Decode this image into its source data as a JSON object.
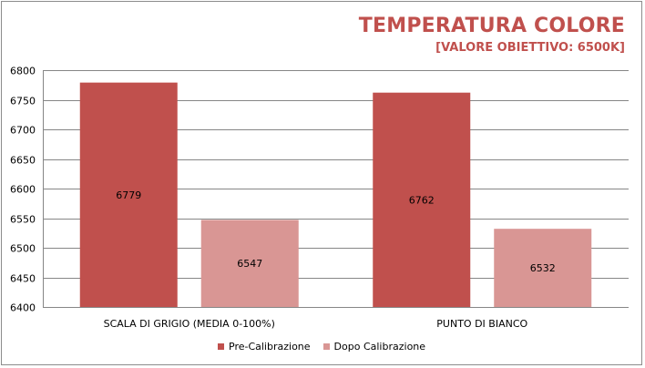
{
  "chart_data": {
    "type": "bar",
    "title": "TEMPERATURA COLORE",
    "subtitle": "[VALORE OBIETTIVO: 6500K]",
    "categories": [
      "SCALA DI GRIGIO (MEDIA  0-100%)",
      "PUNTO DI BIANCO"
    ],
    "series": [
      {
        "name": "Pre-Calibrazione",
        "values": [
          6779,
          6762
        ],
        "color": "#c0504d"
      },
      {
        "name": "Dopo Calibrazione",
        "values": [
          6547,
          6532
        ],
        "color": "#d99694"
      }
    ],
    "ylim": [
      6400,
      6800
    ],
    "yticks": [
      6400,
      6450,
      6500,
      6550,
      6600,
      6650,
      6700,
      6750,
      6800
    ],
    "grid": true,
    "legend_position": "bottom",
    "data_labels": true
  }
}
